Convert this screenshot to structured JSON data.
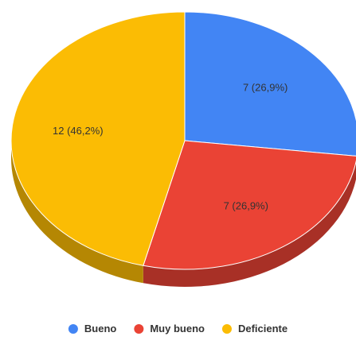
{
  "chart_data": {
    "type": "pie",
    "title": "",
    "three_d": true,
    "legend_position": "bottom",
    "series": [
      {
        "categories": [
          "Bueno",
          "Muy bueno",
          "Deficiente"
        ],
        "values": [
          7,
          7,
          12
        ],
        "labels": [
          "7 (26,9%)",
          "7 (26,9%)",
          "12 (46,2%)"
        ],
        "colors": [
          "#4285f4",
          "#ea4335",
          "#fbbc04"
        ]
      }
    ],
    "legend": [
      {
        "label": "Bueno",
        "color": "#4285f4"
      },
      {
        "label": "Muy bueno",
        "color": "#ea4335"
      },
      {
        "label": "Deficiente",
        "color": "#fbbc04"
      }
    ]
  }
}
